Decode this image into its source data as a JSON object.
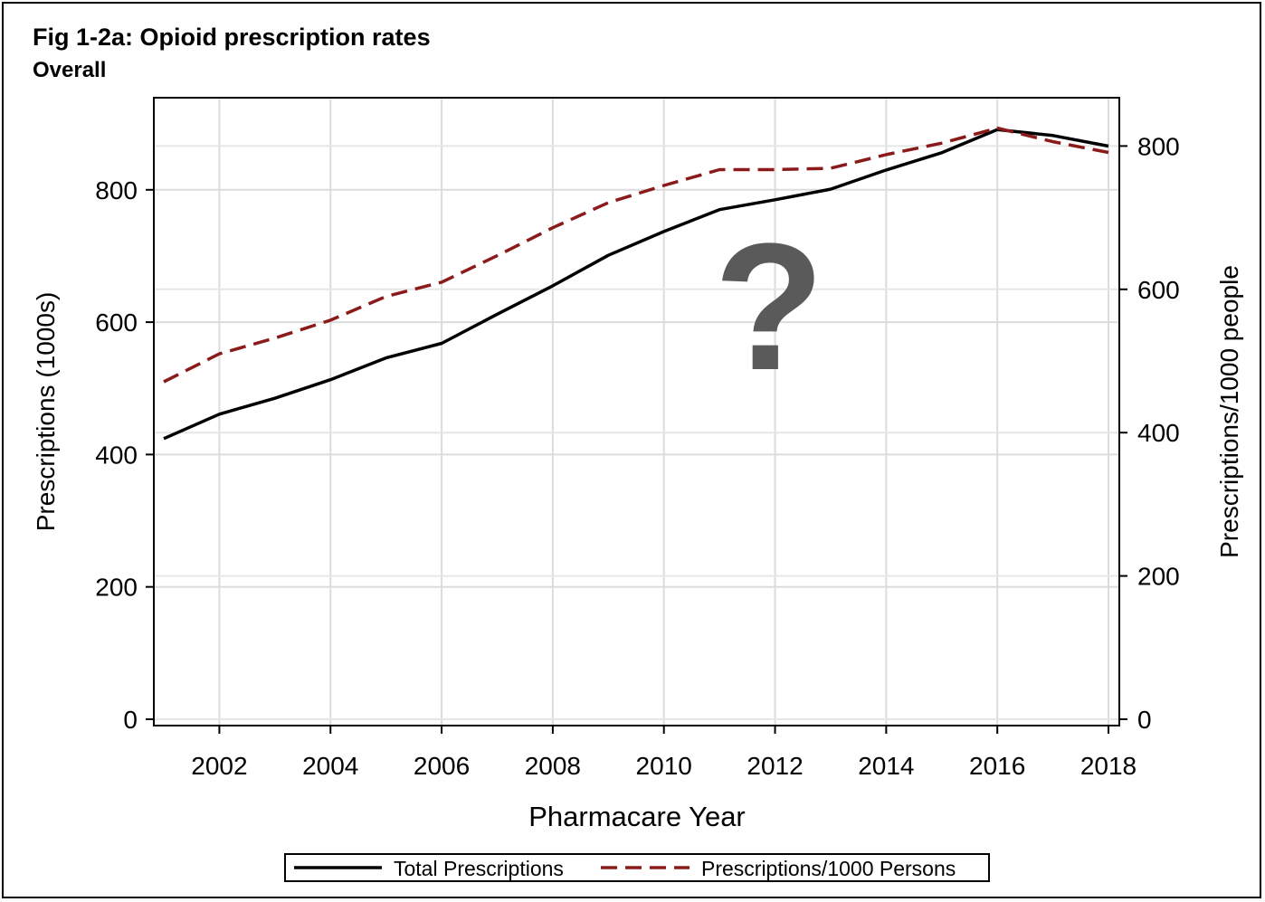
{
  "chart_data": {
    "type": "line",
    "title": "Fig 1-2a: Opioid prescription rates",
    "subtitle": "Overall",
    "xlabel": "Pharmacare Year",
    "ylabel": "Prescriptions (1000s)",
    "y2label": "Prescriptions/1000 people",
    "xlim": [
      2001,
      2018
    ],
    "ylim": [
      0,
      935
    ],
    "y2lim": [
      0,
      870
    ],
    "x_ticks": [
      2002,
      2004,
      2006,
      2008,
      2010,
      2012,
      2014,
      2016,
      2018
    ],
    "y_ticks": [
      0,
      200,
      400,
      600,
      800
    ],
    "y2_ticks": [
      0,
      200,
      400,
      600,
      800
    ],
    "grid": true,
    "legend_position": "bottom",
    "x": [
      2001,
      2002,
      2003,
      2004,
      2005,
      2006,
      2007,
      2008,
      2009,
      2010,
      2011,
      2012,
      2013,
      2014,
      2015,
      2016,
      2017,
      2018
    ],
    "series": [
      {
        "name": "Total Prescriptions",
        "axis": "left",
        "color": "#000000",
        "style": "solid",
        "values": [
          424,
          461,
          485,
          513,
          546,
          568,
          612,
          655,
          701,
          737,
          770,
          785,
          801,
          830,
          856,
          891,
          882,
          866
        ]
      },
      {
        "name": "Prescriptions/1000 Persons",
        "axis": "right",
        "color": "#8b1a1a",
        "style": "dashed",
        "values": [
          471,
          510,
          532,
          557,
          590,
          610,
          647,
          686,
          721,
          745,
          767,
          767,
          769,
          788,
          804,
          825,
          806,
          791
        ]
      }
    ]
  },
  "overlay_symbol": "?"
}
